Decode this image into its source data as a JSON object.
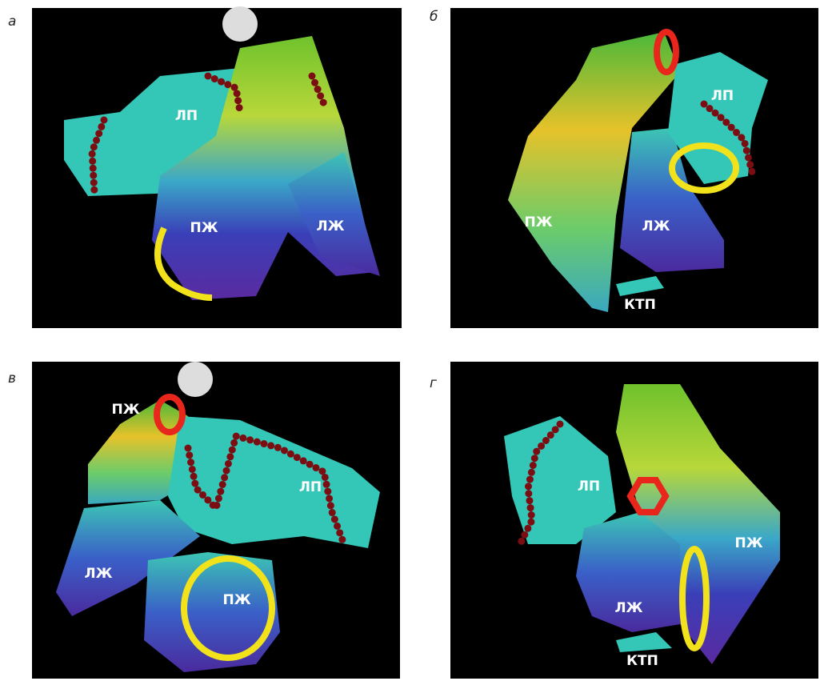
{
  "panels": [
    {
      "letter": "а",
      "labels": [
        "ЛП",
        "ПЖ",
        "ЛЖ"
      ]
    },
    {
      "letter": "б",
      "labels": [
        "ЛП",
        "ПЖ",
        "ЛЖ",
        "КТП"
      ]
    },
    {
      "letter": "в",
      "labels": [
        "ПЖ",
        "ЛП",
        "ЛЖ",
        "ПЖ"
      ]
    },
    {
      "letter": "г",
      "labels": [
        "ЛП",
        "ПЖ",
        "ЛЖ",
        "КТП"
      ]
    }
  ]
}
